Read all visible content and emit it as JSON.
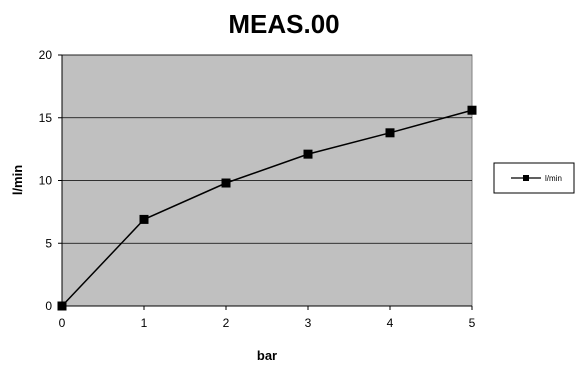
{
  "chart_data": {
    "type": "line",
    "title": "MEAS.00",
    "xlabel": "bar",
    "ylabel": "l/min",
    "x": [
      0,
      1,
      2,
      3,
      4,
      5
    ],
    "series": [
      {
        "name": "l/min",
        "values": [
          0,
          6.9,
          9.8,
          12.1,
          13.8,
          15.6
        ]
      }
    ],
    "xlim": [
      0,
      5
    ],
    "ylim": [
      0,
      20
    ],
    "xticks": [
      "0",
      "1",
      "2",
      "3",
      "4",
      "5"
    ],
    "yticks": [
      "0",
      "5",
      "10",
      "15",
      "20"
    ],
    "ytick_values": [
      0,
      5,
      10,
      15,
      20
    ],
    "grid": "horizontal",
    "legend_position": "right",
    "colors": {
      "plot_bg": "#c0c0c0",
      "line": "#000000",
      "grid": "#000000"
    }
  }
}
